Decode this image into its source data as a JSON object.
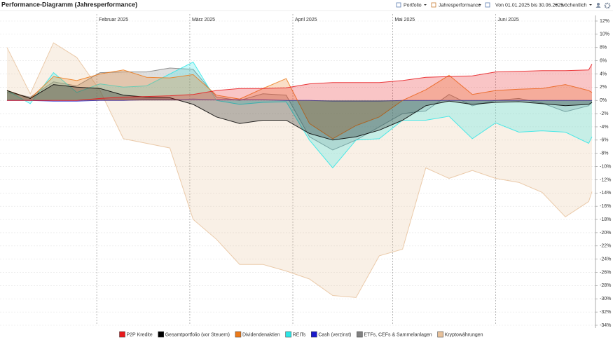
{
  "toolbar": {
    "portfolio": "Portfolio",
    "mode": "Jahresperformance",
    "range": "Von 01.01.2025 bis 30.06.2025",
    "interval": "wöchentlich"
  },
  "chart_data": {
    "type": "area",
    "title": "Performance-Diagramm (Jahresperformance)",
    "x": [
      4,
      11,
      18,
      25,
      32,
      39,
      46,
      53,
      60,
      67,
      74,
      81,
      88,
      95,
      102,
      109,
      116,
      123,
      130,
      137,
      144,
      151,
      158,
      165,
      172,
      179,
      180
    ],
    "xlim": [
      4,
      180
    ],
    "xticks": [
      {
        "value": 31,
        "label": "Februar 2025"
      },
      {
        "value": 59,
        "label": "März 2025"
      },
      {
        "value": 90,
        "label": "April 2025"
      },
      {
        "value": 120,
        "label": "Mai 2025"
      },
      {
        "value": 151,
        "label": "Juni 2025"
      }
    ],
    "ylim": [
      -34,
      12
    ],
    "yticks": [
      {
        "value": 12,
        "label": "12%"
      },
      {
        "value": 10,
        "label": "10%"
      },
      {
        "value": 8,
        "label": "8%"
      },
      {
        "value": 6,
        "label": "6%"
      },
      {
        "value": 4,
        "label": "4%"
      },
      {
        "value": 2,
        "label": "2%"
      },
      {
        "value": 0,
        "label": "0%"
      },
      {
        "value": -2,
        "label": "-2%"
      },
      {
        "value": -4,
        "label": "-4%"
      },
      {
        "value": -6,
        "label": "-6%"
      },
      {
        "value": -8,
        "label": "-8%"
      },
      {
        "value": -10,
        "label": "-10%"
      },
      {
        "value": -12,
        "label": "-12%"
      },
      {
        "value": -14,
        "label": "-14%"
      },
      {
        "value": -16,
        "label": "-16%"
      },
      {
        "value": -18,
        "label": "-18%"
      },
      {
        "value": -20,
        "label": "-20%"
      },
      {
        "value": -22,
        "label": "-22%"
      },
      {
        "value": -24,
        "label": "-24%"
      },
      {
        "value": -26,
        "label": "-26%"
      },
      {
        "value": -28,
        "label": "-28%"
      },
      {
        "value": -30,
        "label": "-30%"
      },
      {
        "value": -32,
        "label": "-32%"
      },
      {
        "value": -34,
        "label": "-34%"
      }
    ],
    "grid": true,
    "series": [
      {
        "name": "P2P Kredite",
        "color": "#e8191c",
        "values": [
          0,
          0,
          0,
          0,
          0.3,
          0.5,
          0.6,
          0.7,
          0.9,
          1.5,
          1.8,
          1.8,
          1.9,
          2.5,
          2.7,
          2.7,
          2.7,
          3.0,
          3.5,
          3.6,
          3.7,
          4.3,
          4.4,
          4.5,
          4.5,
          4.6,
          5.5
        ]
      },
      {
        "name": "Gesamtportfolio (vor Steuern)",
        "color": "#000000",
        "values": [
          1.5,
          0.3,
          2.4,
          2,
          1.8,
          0.8,
          0.5,
          0.4,
          -0.6,
          -2.5,
          -3.5,
          -3,
          -3,
          -5,
          -6,
          -5.5,
          -4.5,
          -3,
          -0.8,
          -0.1,
          -0.6,
          -0.3,
          -0.2,
          -0.5,
          -0.8,
          -0.6,
          -0.3
        ]
      },
      {
        "name": "Dividendenaktien",
        "color": "#ec7a1a",
        "values": [
          1.5,
          0.3,
          3.6,
          3,
          4,
          4.6,
          3.5,
          3.4,
          3.9,
          0.8,
          0.2,
          1.8,
          3.3,
          -3.5,
          -5.8,
          -3.8,
          -2.5,
          0,
          1.6,
          3.8,
          0.9,
          1.5,
          1.7,
          1.8,
          2.4,
          1.5,
          1.2
        ]
      },
      {
        "name": "REITs",
        "color": "#2ee6e6",
        "values": [
          1.5,
          -0.5,
          4.2,
          1.2,
          2.5,
          2,
          2.2,
          4,
          5.8,
          0,
          -0.6,
          -0.3,
          -0.2,
          -6,
          -10.2,
          -6,
          -5.8,
          -3,
          -3,
          -2.4,
          -5.8,
          -3.4,
          -4.8,
          -4.6,
          -4.8,
          -6.5,
          -5.5
        ]
      },
      {
        "name": "Cash (verzinst)",
        "color": "#1a1acc",
        "values": [
          0,
          0,
          -0.1,
          -0.1,
          0,
          0,
          0.1,
          0.1,
          0.2,
          0.1,
          0.1,
          0.1,
          0,
          0,
          -0.1,
          -0.1,
          -0.1,
          0,
          0,
          0,
          0,
          0,
          0,
          0,
          0,
          0,
          0
        ]
      },
      {
        "name": "ETFs, CEFs & Sammelanlagen",
        "color": "#808080",
        "values": [
          1.2,
          0.5,
          2.8,
          2.2,
          4.2,
          4.3,
          4.3,
          4.9,
          4.7,
          0.5,
          0,
          1,
          0.8,
          -5.5,
          -7.5,
          -6,
          -4,
          -2,
          -1.6,
          0.9,
          -0.8,
          0,
          0.3,
          -0.4,
          -1.7,
          -0.8,
          -0.3
        ]
      },
      {
        "name": "Kryptowährungen",
        "color": "#e8c29c",
        "values": [
          8,
          1,
          8.7,
          6.5,
          1.5,
          -5.8,
          -6.5,
          -7.2,
          -18,
          -21,
          -24.8,
          -24.8,
          -25.8,
          -27,
          -29.5,
          -29.8,
          -23.5,
          -22.5,
          -10.2,
          -11.8,
          -10.6,
          -11.8,
          -12.4,
          -13.9,
          -17.6,
          -15.3,
          -13.8
        ]
      }
    ]
  }
}
